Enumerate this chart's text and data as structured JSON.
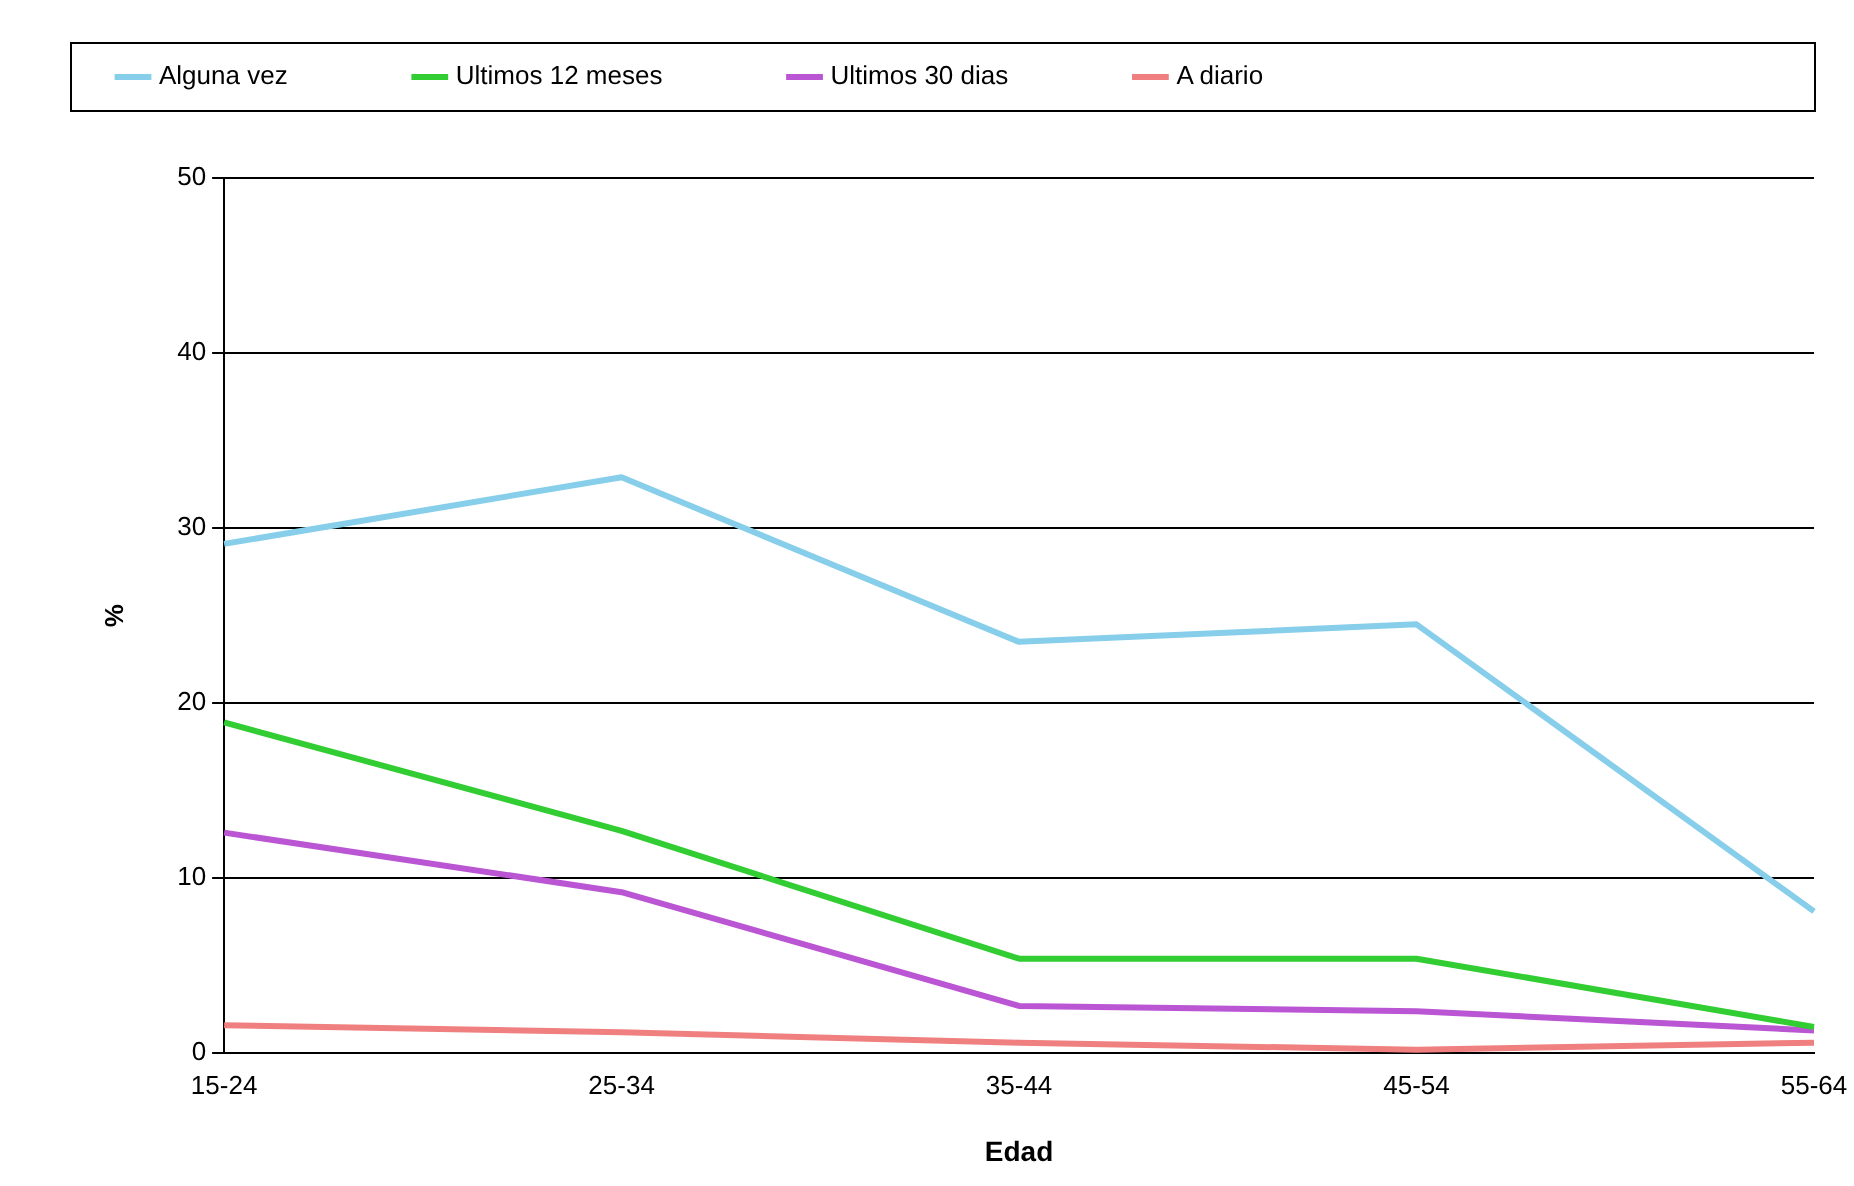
{
  "chart_data": {
    "type": "line",
    "xlabel": "Edad",
    "ylabel": "%",
    "categories": [
      "15-24",
      "25-34",
      "35-44",
      "45-54",
      "55-64"
    ],
    "series": [
      {
        "name": "Alguna vez",
        "color": "#87ceeb",
        "values": [
          29.1,
          32.9,
          23.5,
          24.5,
          8.1
        ]
      },
      {
        "name": "Ultimos 12 meses",
        "color": "#32cd32",
        "values": [
          18.9,
          12.7,
          5.4,
          5.4,
          1.5
        ]
      },
      {
        "name": "Ultimos 30 dias",
        "color": "#ba55d3",
        "values": [
          12.6,
          9.2,
          2.7,
          2.4,
          1.3
        ]
      },
      {
        "name": "A diario",
        "color": "#f08080",
        "values": [
          1.6,
          1.2,
          0.6,
          0.2,
          0.6
        ]
      }
    ],
    "ylim": [
      0,
      50
    ],
    "yticks": [
      0,
      10,
      20,
      30,
      40,
      50
    ],
    "grid": "y",
    "legend": "top",
    "marker": "none",
    "line_style": "solid"
  }
}
